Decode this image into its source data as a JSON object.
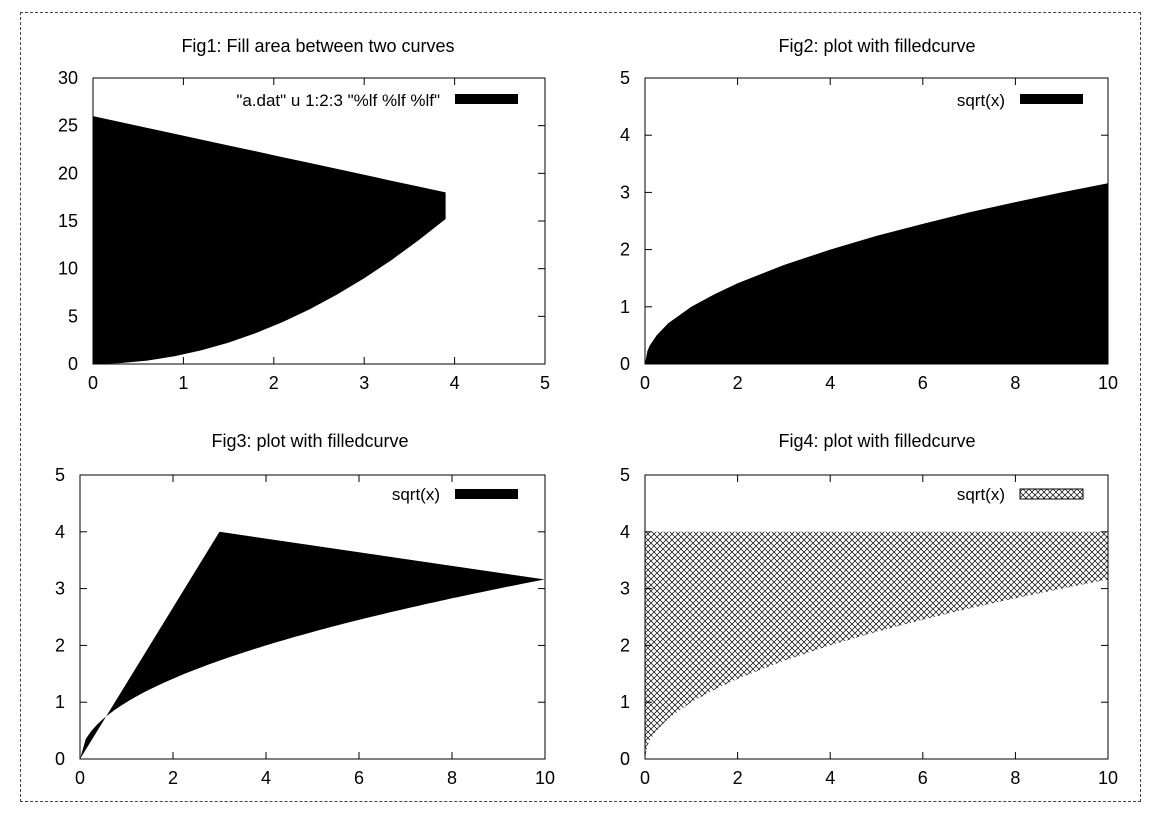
{
  "chart_data": [
    {
      "type": "area",
      "title": "Fig1: Fill area between two curves",
      "xlabel": "",
      "ylabel": "",
      "xlim": [
        0,
        5
      ],
      "ylim": [
        0,
        30
      ],
      "xticks": [
        0,
        1,
        2,
        3,
        4,
        5
      ],
      "yticks": [
        0,
        5,
        10,
        15,
        20,
        25,
        30
      ],
      "legend": {
        "label": "\"a.dat\" u 1:2:3 \"%lf %lf %lf\"",
        "fill": "solid",
        "position": "top-right"
      },
      "series": [
        {
          "name": "\"a.dat\" u 1:2:3 \"%lf %lf %lf\"",
          "fill": "solid",
          "x": [
            0,
            0.3,
            0.6,
            0.9,
            1.2,
            1.5,
            1.8,
            2.1,
            2.4,
            2.7,
            3.0,
            3.3,
            3.6,
            3.9
          ],
          "y_upper": [
            26,
            25.38,
            24.77,
            24.15,
            23.54,
            22.92,
            22.31,
            21.69,
            21.08,
            20.46,
            19.85,
            19.23,
            18.62,
            18.0
          ],
          "y_lower": [
            0,
            0.09,
            0.36,
            0.81,
            1.44,
            2.25,
            3.24,
            4.41,
            5.76,
            7.29,
            9.0,
            10.89,
            12.96,
            15.21
          ]
        }
      ]
    },
    {
      "type": "area",
      "title": "Fig2: plot with filledcurve",
      "xlabel": "",
      "ylabel": "",
      "xlim": [
        0,
        10
      ],
      "ylim": [
        0,
        5
      ],
      "xticks": [
        0,
        2,
        4,
        6,
        8,
        10
      ],
      "yticks": [
        0,
        1,
        2,
        3,
        4,
        5
      ],
      "legend": {
        "label": "sqrt(x)",
        "fill": "solid",
        "position": "top-right"
      },
      "series": [
        {
          "name": "sqrt(x)",
          "fill": "solid",
          "x": [
            0,
            0.05,
            0.1,
            0.25,
            0.5,
            1,
            1.5,
            2,
            3,
            4,
            5,
            6,
            7,
            8,
            9,
            10
          ],
          "y_upper": [
            0,
            0.22,
            0.32,
            0.5,
            0.71,
            1.0,
            1.22,
            1.41,
            1.73,
            2.0,
            2.24,
            2.45,
            2.65,
            2.83,
            3.0,
            3.16
          ],
          "y_lower": [
            0,
            0,
            0,
            0,
            0,
            0,
            0,
            0,
            0,
            0,
            0,
            0,
            0,
            0,
            0,
            0
          ]
        }
      ]
    },
    {
      "type": "area",
      "title": "Fig3: plot with filledcurve",
      "xlabel": "",
      "ylabel": "",
      "xlim": [
        0,
        10
      ],
      "ylim": [
        0,
        5
      ],
      "xticks": [
        0,
        2,
        4,
        6,
        8,
        10
      ],
      "yticks": [
        0,
        1,
        2,
        3,
        4,
        5
      ],
      "legend": {
        "label": "sqrt(x)",
        "fill": "solid",
        "position": "top-right"
      },
      "series": [
        {
          "name": "sqrt(x)",
          "fill": "solid",
          "curve": "sqrt(x)",
          "vertices": [
            [
              0,
              0
            ],
            [
              3,
              4
            ],
            [
              10,
              3.16
            ]
          ]
        }
      ]
    },
    {
      "type": "area",
      "title": "Fig4: plot with filledcurve",
      "xlabel": "",
      "ylabel": "",
      "xlim": [
        0,
        10
      ],
      "ylim": [
        0,
        5
      ],
      "xticks": [
        0,
        2,
        4,
        6,
        8,
        10
      ],
      "yticks": [
        0,
        1,
        2,
        3,
        4,
        5
      ],
      "legend": {
        "label": "sqrt(x)",
        "fill": "crosshatch",
        "position": "top-right"
      },
      "series": [
        {
          "name": "sqrt(x)",
          "fill": "crosshatch",
          "x": [
            0,
            0.05,
            0.1,
            0.25,
            0.5,
            1,
            1.5,
            2,
            3,
            4,
            5,
            6,
            7,
            8,
            9,
            10
          ],
          "y_lower": [
            0,
            0.22,
            0.32,
            0.5,
            0.71,
            1.0,
            1.22,
            1.41,
            1.73,
            2.0,
            2.24,
            2.45,
            2.65,
            2.83,
            3.0,
            3.16
          ],
          "y_upper": [
            4,
            4,
            4,
            4,
            4,
            4,
            4,
            4,
            4,
            4,
            4,
            4,
            4,
            4,
            4,
            4
          ]
        }
      ]
    }
  ]
}
